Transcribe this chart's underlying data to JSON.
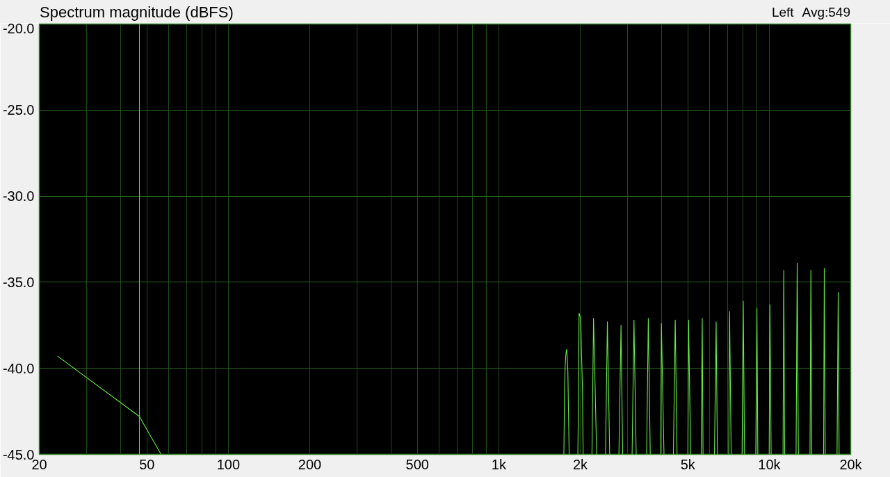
{
  "chart_data": {
    "type": "line",
    "title": "Spectrum magnitude (dBFS)",
    "annotations": [
      "Left",
      "Avg:549"
    ],
    "series": [
      {
        "color": "#66ee44",
        "x": [
          23.4,
          46.9,
          56.4
        ],
        "values": [
          -39.3,
          -42.8,
          -45
        ]
      },
      {
        "color": "#66ee44",
        "x": [
          1740,
          1750,
          1760,
          1770,
          1780,
          1790,
          1800,
          1820
        ],
        "values": [
          -45,
          -41.1,
          -39.8,
          -39.2,
          -38.9,
          -39.3,
          -40.2,
          -45
        ]
      },
      {
        "color": "#66ee44",
        "x": [
          1960,
          1970,
          1980,
          2000,
          2010,
          2020,
          2040,
          2050
        ],
        "values": [
          -45,
          -41.9,
          -36.8,
          -37.0,
          -37.4,
          -38.9,
          -41.5,
          -45
        ]
      },
      {
        "color": "#66ee44",
        "x": [
          2210,
          2240,
          2300
        ],
        "values": [
          -45,
          -37.1,
          -45
        ]
      },
      {
        "color": "#66ee44",
        "x": [
          2480,
          2520,
          2570
        ],
        "values": [
          -45,
          -37.3,
          -45
        ]
      },
      {
        "color": "#66ee44",
        "x": [
          2780,
          2830,
          2870
        ],
        "values": [
          -45,
          -37.5,
          -45
        ]
      },
      {
        "color": "#66ee44",
        "x": [
          3110,
          3160,
          3220
        ],
        "values": [
          -45,
          -37.2,
          -45
        ]
      },
      {
        "color": "#66ee44",
        "x": [
          3520,
          3570,
          3630
        ],
        "values": [
          -45,
          -37.1,
          -45
        ]
      },
      {
        "color": "#66ee44",
        "x": [
          3970,
          3990,
          4080
        ],
        "values": [
          -45,
          -37.4,
          -45
        ]
      },
      {
        "color": "#66ee44",
        "x": [
          4420,
          4490,
          4560
        ],
        "values": [
          -45,
          -37.2,
          -45
        ]
      },
      {
        "color": "#66ee44",
        "x": [
          5000,
          5030,
          5120
        ],
        "values": [
          -45,
          -37.2,
          -45
        ]
      },
      {
        "color": "#66ee44",
        "x": [
          5600,
          5650,
          5690
        ],
        "values": [
          -45,
          -37.1,
          -45
        ]
      },
      {
        "color": "#66ee44",
        "x": [
          6270,
          6360,
          6430
        ],
        "values": [
          -45,
          -37.3,
          -45
        ]
      },
      {
        "color": "#66ee44",
        "x": [
          7080,
          7130,
          7230
        ],
        "values": [
          -45,
          -36.7,
          -45
        ]
      },
      {
        "color": "#66ee44",
        "x": [
          7930,
          8010,
          8100
        ],
        "values": [
          -45,
          -36.1,
          -45
        ]
      },
      {
        "color": "#66ee44",
        "x": [
          8910,
          9000,
          9070
        ],
        "values": [
          -45,
          -36.5,
          -45
        ]
      },
      {
        "color": "#66ee44",
        "x": [
          9990,
          10050,
          10160
        ],
        "values": [
          -45,
          -36.3,
          -45
        ]
      },
      {
        "color": "#66ee44",
        "x": [
          11240,
          11310,
          11400
        ],
        "values": [
          -45,
          -34.3,
          -45
        ]
      },
      {
        "color": "#66ee44",
        "x": [
          12560,
          12680,
          12810
        ],
        "values": [
          -45,
          -33.9,
          -45
        ]
      },
      {
        "color": "#66ee44",
        "x": [
          14140,
          14250,
          14360
        ],
        "values": [
          -45,
          -34.3,
          -45
        ]
      },
      {
        "color": "#66ee44",
        "x": [
          15880,
          15970,
          16100
        ],
        "values": [
          -45,
          -34.2,
          -45
        ]
      },
      {
        "color": "#66ee44",
        "x": [
          17800,
          17980,
          18120
        ],
        "values": [
          -45,
          -35.6,
          -45
        ]
      }
    ],
    "xlim": [
      20,
      20000
    ],
    "ylim": [
      -45,
      -20
    ],
    "xticks": [
      20,
      {
        "value": 30,
        "label": null
      },
      {
        "value": 40,
        "label": null
      },
      50,
      {
        "value": 60,
        "label": null
      },
      {
        "value": 70,
        "label": null
      },
      {
        "value": 80,
        "label": null
      },
      {
        "value": 90,
        "label": null
      },
      100,
      200,
      {
        "value": 300,
        "label": null
      },
      {
        "value": 400,
        "label": null
      },
      500,
      {
        "value": 600,
        "label": null
      },
      {
        "value": 700,
        "label": null
      },
      {
        "value": 800,
        "label": null
      },
      {
        "value": 900,
        "label": null
      },
      {
        "value": 1000,
        "label": "1k"
      },
      {
        "value": 2000,
        "label": "2k"
      },
      {
        "value": 3000,
        "label": null
      },
      {
        "value": 4000,
        "label": null
      },
      {
        "value": 5000,
        "label": "5k"
      },
      {
        "value": 6000,
        "label": null
      },
      {
        "value": 7000,
        "label": null
      },
      {
        "value": 8000,
        "label": null
      },
      {
        "value": 9000,
        "label": null
      },
      {
        "value": 10000,
        "label": "10k"
      },
      {
        "value": 20000,
        "label": "20k"
      }
    ],
    "yticks": [
      {
        "value": -45,
        "label": "-45.0"
      },
      {
        "value": -40,
        "label": "-40.0"
      },
      {
        "value": -35,
        "label": "-35.0"
      },
      {
        "value": -30,
        "label": "-30.0"
      },
      {
        "value": -25,
        "label": "-25.0"
      },
      {
        "value": -20,
        "label": "-20.0"
      }
    ],
    "log": "x",
    "grid": true,
    "ref_lines": [
      {
        "axis": "x",
        "value": 46.9,
        "color": "#b8b040"
      }
    ]
  }
}
